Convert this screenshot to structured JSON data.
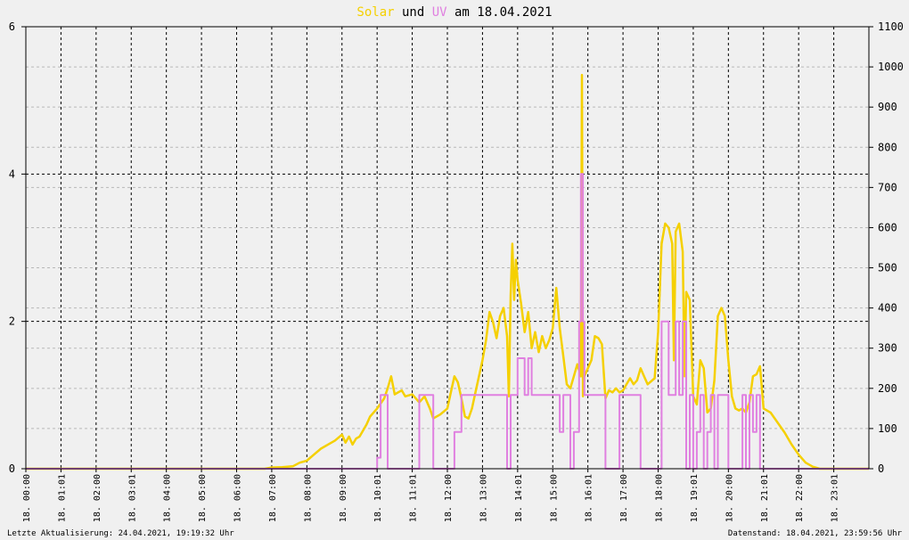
{
  "chart_data": {
    "type": "line",
    "title": {
      "parts": [
        {
          "text": "Solar",
          "color": "#f5d000"
        },
        {
          "text": " und ",
          "color": "#000000"
        },
        {
          "text": "UV",
          "color": "#e080e0"
        },
        {
          "text": " am 18.04.2021",
          "color": "#000000"
        }
      ]
    },
    "x_ticks": [
      "18. 00:00",
      "18. 01:01",
      "18. 02:00",
      "18. 03:01",
      "18. 04:00",
      "18. 05:00",
      "18. 06:00",
      "18. 07:00",
      "18. 08:00",
      "18. 09:00",
      "18. 10:01",
      "18. 11:01",
      "18. 12:00",
      "18. 13:00",
      "18. 14:01",
      "18. 15:00",
      "18. 16:01",
      "18. 17:00",
      "18. 18:00",
      "18. 19:01",
      "18. 20:00",
      "18. 21:01",
      "18. 22:00",
      "18. 23:01"
    ],
    "x_range_hours": [
      0,
      24
    ],
    "y_left": {
      "ticks": [
        "0",
        "2",
        "4",
        "6"
      ],
      "range": [
        0,
        6
      ]
    },
    "y_right": {
      "ticks": [
        "0",
        "100",
        "200",
        "300",
        "400",
        "500",
        "600",
        "700",
        "800",
        "900",
        "1000",
        "1100"
      ],
      "range": [
        0,
        1100
      ]
    },
    "grid": true,
    "series": [
      {
        "name": "Solar",
        "axis": "right",
        "color": "#f5d000",
        "points": [
          [
            0,
            0
          ],
          [
            6.8,
            0
          ],
          [
            7.0,
            3
          ],
          [
            7.3,
            4
          ],
          [
            7.6,
            6
          ],
          [
            7.8,
            15
          ],
          [
            8.0,
            20
          ],
          [
            8.2,
            35
          ],
          [
            8.4,
            50
          ],
          [
            8.6,
            60
          ],
          [
            8.8,
            70
          ],
          [
            9.0,
            85
          ],
          [
            9.1,
            65
          ],
          [
            9.2,
            80
          ],
          [
            9.3,
            60
          ],
          [
            9.4,
            75
          ],
          [
            9.5,
            80
          ],
          [
            9.7,
            110
          ],
          [
            9.8,
            130
          ],
          [
            10.0,
            150
          ],
          [
            10.2,
            175
          ],
          [
            10.3,
            200
          ],
          [
            10.4,
            230
          ],
          [
            10.5,
            185
          ],
          [
            10.6,
            190
          ],
          [
            10.7,
            195
          ],
          [
            10.8,
            180
          ],
          [
            11.0,
            185
          ],
          [
            11.2,
            165
          ],
          [
            11.35,
            180
          ],
          [
            11.5,
            150
          ],
          [
            11.6,
            125
          ],
          [
            11.8,
            135
          ],
          [
            12.0,
            150
          ],
          [
            12.1,
            190
          ],
          [
            12.2,
            230
          ],
          [
            12.3,
            215
          ],
          [
            12.4,
            175
          ],
          [
            12.5,
            130
          ],
          [
            12.6,
            125
          ],
          [
            12.7,
            150
          ],
          [
            12.8,
            190
          ],
          [
            13.0,
            270
          ],
          [
            13.1,
            320
          ],
          [
            13.2,
            390
          ],
          [
            13.3,
            365
          ],
          [
            13.4,
            325
          ],
          [
            13.5,
            380
          ],
          [
            13.6,
            400
          ],
          [
            13.7,
            330
          ],
          [
            13.75,
            180
          ],
          [
            13.8,
            430
          ],
          [
            13.85,
            560
          ],
          [
            13.9,
            420
          ],
          [
            13.95,
            520
          ],
          [
            14.0,
            470
          ],
          [
            14.1,
            410
          ],
          [
            14.2,
            340
          ],
          [
            14.3,
            390
          ],
          [
            14.4,
            300
          ],
          [
            14.5,
            340
          ],
          [
            14.6,
            290
          ],
          [
            14.7,
            330
          ],
          [
            14.8,
            300
          ],
          [
            14.9,
            320
          ],
          [
            15.0,
            350
          ],
          [
            15.1,
            450
          ],
          [
            15.2,
            350
          ],
          [
            15.3,
            280
          ],
          [
            15.4,
            210
          ],
          [
            15.5,
            200
          ],
          [
            15.6,
            230
          ],
          [
            15.7,
            260
          ],
          [
            15.8,
            230
          ],
          [
            15.83,
            980
          ],
          [
            15.86,
            180
          ],
          [
            15.9,
            230
          ],
          [
            16.0,
            250
          ],
          [
            16.1,
            270
          ],
          [
            16.2,
            330
          ],
          [
            16.3,
            325
          ],
          [
            16.4,
            310
          ],
          [
            16.5,
            175
          ],
          [
            16.6,
            195
          ],
          [
            16.7,
            190
          ],
          [
            16.8,
            200
          ],
          [
            16.9,
            190
          ],
          [
            17.0,
            195
          ],
          [
            17.1,
            210
          ],
          [
            17.2,
            225
          ],
          [
            17.3,
            210
          ],
          [
            17.4,
            220
          ],
          [
            17.5,
            250
          ],
          [
            17.6,
            230
          ],
          [
            17.7,
            210
          ],
          [
            17.9,
            225
          ],
          [
            18.0,
            340
          ],
          [
            18.1,
            560
          ],
          [
            18.2,
            610
          ],
          [
            18.3,
            600
          ],
          [
            18.4,
            560
          ],
          [
            18.45,
            270
          ],
          [
            18.5,
            590
          ],
          [
            18.6,
            610
          ],
          [
            18.7,
            540
          ],
          [
            18.75,
            230
          ],
          [
            18.8,
            440
          ],
          [
            18.9,
            420
          ],
          [
            19.0,
            180
          ],
          [
            19.1,
            160
          ],
          [
            19.2,
            270
          ],
          [
            19.3,
            250
          ],
          [
            19.4,
            140
          ],
          [
            19.5,
            150
          ],
          [
            19.6,
            220
          ],
          [
            19.7,
            380
          ],
          [
            19.8,
            400
          ],
          [
            19.9,
            380
          ],
          [
            20.0,
            270
          ],
          [
            20.1,
            180
          ],
          [
            20.2,
            150
          ],
          [
            20.3,
            145
          ],
          [
            20.4,
            150
          ],
          [
            20.5,
            140
          ],
          [
            20.6,
            165
          ],
          [
            20.7,
            230
          ],
          [
            20.8,
            235
          ],
          [
            20.9,
            255
          ],
          [
            21.0,
            150
          ],
          [
            21.2,
            140
          ],
          [
            21.4,
            115
          ],
          [
            21.6,
            90
          ],
          [
            21.8,
            60
          ],
          [
            22.0,
            35
          ],
          [
            22.2,
            15
          ],
          [
            22.4,
            5
          ],
          [
            22.6,
            0
          ],
          [
            24.0,
            0
          ]
        ]
      },
      {
        "name": "UV",
        "axis": "left",
        "color": "#e080e0",
        "points": [
          [
            0,
            0
          ],
          [
            10.0,
            0
          ],
          [
            10.0,
            0.15
          ],
          [
            10.1,
            0.15
          ],
          [
            10.1,
            1
          ],
          [
            10.3,
            1
          ],
          [
            10.3,
            0
          ],
          [
            11.2,
            0
          ],
          [
            11.2,
            1
          ],
          [
            11.6,
            1
          ],
          [
            11.6,
            0
          ],
          [
            12.2,
            0
          ],
          [
            12.2,
            0.5
          ],
          [
            12.4,
            0.5
          ],
          [
            12.4,
            1
          ],
          [
            13.7,
            1
          ],
          [
            13.7,
            0
          ],
          [
            13.8,
            0
          ],
          [
            13.8,
            1
          ],
          [
            14.0,
            1
          ],
          [
            14.0,
            1.5
          ],
          [
            14.2,
            1.5
          ],
          [
            14.2,
            1
          ],
          [
            14.3,
            1
          ],
          [
            14.3,
            1.5
          ],
          [
            14.4,
            1.5
          ],
          [
            14.4,
            1
          ],
          [
            15.2,
            1
          ],
          [
            15.2,
            0.5
          ],
          [
            15.3,
            0.5
          ],
          [
            15.3,
            1
          ],
          [
            15.5,
            1
          ],
          [
            15.5,
            0
          ],
          [
            15.6,
            0
          ],
          [
            15.6,
            0.5
          ],
          [
            15.75,
            0.5
          ],
          [
            15.75,
            2
          ],
          [
            15.8,
            2
          ],
          [
            15.8,
            4
          ],
          [
            15.86,
            4
          ],
          [
            15.86,
            2
          ],
          [
            15.9,
            2
          ],
          [
            15.9,
            1
          ],
          [
            16.5,
            1
          ],
          [
            16.5,
            0
          ],
          [
            16.9,
            0
          ],
          [
            16.9,
            1
          ],
          [
            17.5,
            1
          ],
          [
            17.5,
            0
          ],
          [
            18.1,
            0
          ],
          [
            18.1,
            2
          ],
          [
            18.3,
            2
          ],
          [
            18.3,
            1
          ],
          [
            18.5,
            1
          ],
          [
            18.5,
            2
          ],
          [
            18.6,
            2
          ],
          [
            18.6,
            1
          ],
          [
            18.7,
            1
          ],
          [
            18.7,
            2
          ],
          [
            18.8,
            2
          ],
          [
            18.8,
            0
          ],
          [
            18.9,
            0
          ],
          [
            18.9,
            1
          ],
          [
            19.0,
            1
          ],
          [
            19.0,
            0
          ],
          [
            19.1,
            0
          ],
          [
            19.1,
            0.5
          ],
          [
            19.2,
            0.5
          ],
          [
            19.2,
            1
          ],
          [
            19.3,
            1
          ],
          [
            19.3,
            0
          ],
          [
            19.4,
            0
          ],
          [
            19.4,
            0.5
          ],
          [
            19.5,
            0.5
          ],
          [
            19.5,
            1
          ],
          [
            19.6,
            1
          ],
          [
            19.6,
            0
          ],
          [
            19.7,
            0
          ],
          [
            19.7,
            1
          ],
          [
            20.0,
            1
          ],
          [
            20.0,
            0
          ],
          [
            20.4,
            0
          ],
          [
            20.4,
            1
          ],
          [
            20.5,
            1
          ],
          [
            20.5,
            0
          ],
          [
            20.6,
            0
          ],
          [
            20.6,
            1
          ],
          [
            20.7,
            1
          ],
          [
            20.7,
            0.5
          ],
          [
            20.8,
            0.5
          ],
          [
            20.8,
            1
          ],
          [
            20.9,
            1
          ],
          [
            20.9,
            0
          ],
          [
            24.0,
            0
          ]
        ]
      }
    ]
  },
  "footer": {
    "left": "Letzte Aktualisierung: 24.04.2021, 19:19:32 Uhr",
    "right": "Datenstand: 18.04.2021, 23:59:56 Uhr"
  }
}
